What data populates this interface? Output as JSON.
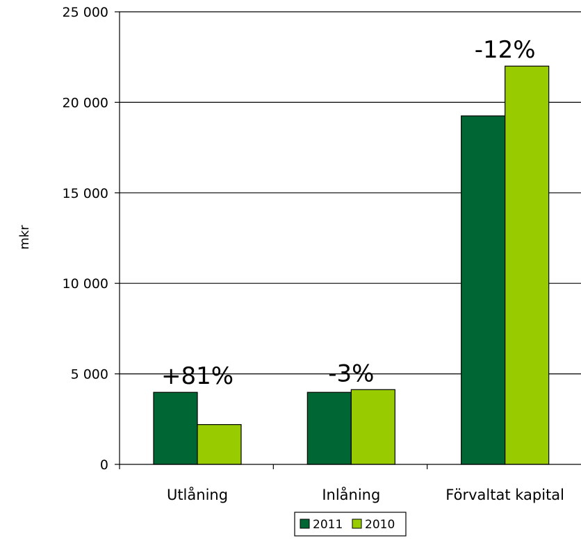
{
  "chart_data": {
    "type": "bar",
    "title": "",
    "xlabel": "",
    "ylabel": "mkr",
    "ylim": [
      0,
      25000
    ],
    "yticks": [
      0,
      5000,
      10000,
      15000,
      20000,
      25000
    ],
    "ytick_labels": [
      "0",
      "5 000",
      "10 000",
      "15 000",
      "20 000",
      "25 000"
    ],
    "categories": [
      "Utlåning",
      "Inlåning",
      "Förvaltat kapital"
    ],
    "series": [
      {
        "name": "2011",
        "color": "#006633",
        "values": [
          3980,
          3980,
          19250
        ]
      },
      {
        "name": "2010",
        "color": "#99CC00",
        "values": [
          2200,
          4130,
          22000
        ]
      }
    ],
    "annotations": [
      "+81%",
      "-3%",
      "-12%"
    ],
    "grid": true,
    "legend_position": "bottom"
  }
}
